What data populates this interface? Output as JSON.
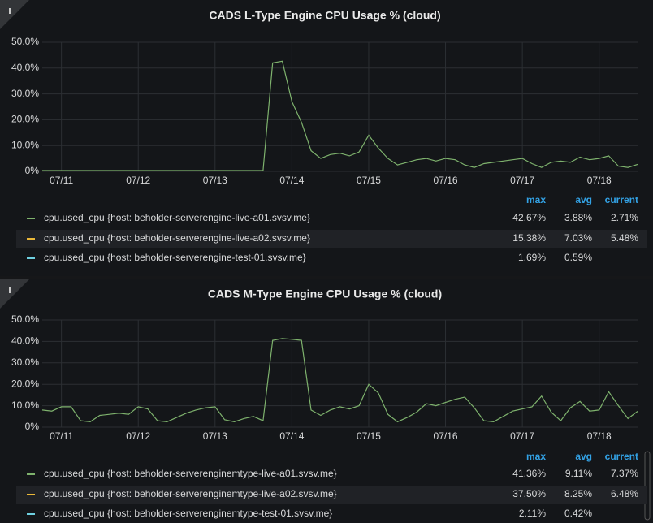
{
  "chart_data": [
    {
      "type": "line",
      "title": "CADS L-Type Engine CPU Usage % (cloud)",
      "categories": [
        null,
        null,
        "07/11",
        null,
        null,
        null,
        null,
        null,
        null,
        null,
        "07/12",
        null,
        null,
        null,
        null,
        null,
        null,
        null,
        "07/13",
        null,
        null,
        null,
        null,
        null,
        null,
        null,
        "07/14",
        null,
        null,
        null,
        null,
        null,
        null,
        null,
        "07/15",
        null,
        null,
        null,
        null,
        null,
        null,
        null,
        "07/16",
        null,
        null,
        null,
        null,
        null,
        null,
        null,
        "07/17",
        null,
        null,
        null,
        null,
        null,
        null,
        null,
        "07/18",
        null,
        null,
        null,
        null
      ],
      "ylim": [
        0,
        50
      ],
      "yticks": [
        {
          "value": 0,
          "label": "0%"
        },
        {
          "value": 10,
          "label": "10.0%"
        },
        {
          "value": 20,
          "label": "20.0%"
        },
        {
          "value": 30,
          "label": "30.0%"
        },
        {
          "value": 40,
          "label": "40.0%"
        },
        {
          "value": 50,
          "label": "50.0%"
        }
      ],
      "grid": true,
      "legend_columns": [
        "max",
        "avg",
        "current"
      ],
      "series": [
        {
          "name": "cpu.used_cpu {host: beholder-serverengine-live-a01.svsv.me}",
          "color": "#7eb26d",
          "values": [
            0.3,
            0.3,
            0.3,
            0.3,
            0.3,
            0.3,
            0.3,
            0.3,
            0.3,
            0.3,
            0.3,
            0.3,
            0.3,
            0.3,
            0.3,
            0.3,
            0.3,
            0.3,
            0.3,
            0.3,
            0.3,
            0.3,
            0.3,
            0.3,
            42.0,
            42.67,
            27.0,
            19.0,
            8.0,
            5.0,
            6.5,
            7.0,
            6.0,
            7.5,
            14.0,
            9.0,
            5.0,
            2.5,
            3.5,
            4.5,
            5.0,
            4.0,
            5.0,
            4.5,
            2.5,
            1.5,
            3.0,
            3.5,
            4.0,
            4.5,
            5.0,
            3.0,
            1.5,
            3.5,
            4.0,
            3.5,
            5.5,
            4.5,
            5.0,
            6.0,
            2.0,
            1.5,
            2.71
          ],
          "stats": [
            42.67,
            3.88,
            2.71
          ],
          "stats_labels": [
            "42.67%",
            "3.88%",
            "2.71%"
          ]
        },
        {
          "name": "cpu.used_cpu {host: beholder-serverengine-live-a02.svsv.me}",
          "color": "#eab839",
          "stats": [
            15.38,
            7.03,
            5.48
          ],
          "stats_labels": [
            "15.38%",
            "7.03%",
            "5.48%"
          ]
        },
        {
          "name": "cpu.used_cpu {host: beholder-serverengine-test-01.svsv.me}",
          "color": "#6ed0e0",
          "stats": [
            1.69,
            0.59,
            null
          ],
          "stats_labels": [
            "1.69%",
            "0.59%",
            null
          ]
        }
      ]
    },
    {
      "type": "line",
      "title": "CADS M-Type Engine CPU Usage % (cloud)",
      "categories": [
        null,
        null,
        "07/11",
        null,
        null,
        null,
        null,
        null,
        null,
        null,
        "07/12",
        null,
        null,
        null,
        null,
        null,
        null,
        null,
        "07/13",
        null,
        null,
        null,
        null,
        null,
        null,
        null,
        "07/14",
        null,
        null,
        null,
        null,
        null,
        null,
        null,
        "07/15",
        null,
        null,
        null,
        null,
        null,
        null,
        null,
        "07/16",
        null,
        null,
        null,
        null,
        null,
        null,
        null,
        "07/17",
        null,
        null,
        null,
        null,
        null,
        null,
        null,
        "07/18",
        null,
        null,
        null,
        null
      ],
      "ylim": [
        0,
        50
      ],
      "yticks": [
        {
          "value": 0,
          "label": "0%"
        },
        {
          "value": 10,
          "label": "10.0%"
        },
        {
          "value": 20,
          "label": "20.0%"
        },
        {
          "value": 30,
          "label": "30.0%"
        },
        {
          "value": 40,
          "label": "40.0%"
        },
        {
          "value": 50,
          "label": "50.0%"
        }
      ],
      "grid": true,
      "legend_columns": [
        "max",
        "avg",
        "current"
      ],
      "series": [
        {
          "name": "cpu.used_cpu {host: beholder-serverenginemtype-live-a01.svsv.me}",
          "color": "#7eb26d",
          "values": [
            8,
            7.5,
            9.5,
            9.5,
            3,
            2.5,
            5.5,
            6,
            6.5,
            6,
            9.5,
            8.5,
            3,
            2.5,
            4.5,
            6.5,
            8,
            9,
            9.5,
            3.5,
            2.5,
            4,
            5,
            3,
            40.5,
            41.36,
            41,
            40.5,
            8,
            5.5,
            8,
            9.5,
            8.5,
            10,
            20,
            16,
            6,
            2.5,
            4.5,
            7,
            11,
            10,
            11.5,
            13,
            14,
            9,
            3,
            2.5,
            5,
            7.5,
            8.5,
            9.5,
            14.5,
            7,
            3,
            9,
            12,
            7.5,
            8,
            16.5,
            10,
            4,
            7.37
          ],
          "stats": [
            41.36,
            9.11,
            7.37
          ],
          "stats_labels": [
            "41.36%",
            "9.11%",
            "7.37%"
          ]
        },
        {
          "name": "cpu.used_cpu {host: beholder-serverenginemtype-live-a02.svsv.me}",
          "color": "#eab839",
          "stats": [
            37.5,
            8.25,
            6.48
          ],
          "stats_labels": [
            "37.50%",
            "8.25%",
            "6.48%"
          ]
        },
        {
          "name": "cpu.used_cpu {host: beholder-serverenginemtype-test-01.svsv.me}",
          "color": "#6ed0e0",
          "stats": [
            2.11,
            0.42,
            null
          ],
          "stats_labels": [
            "2.11%",
            "0.42%",
            null
          ]
        }
      ]
    }
  ]
}
